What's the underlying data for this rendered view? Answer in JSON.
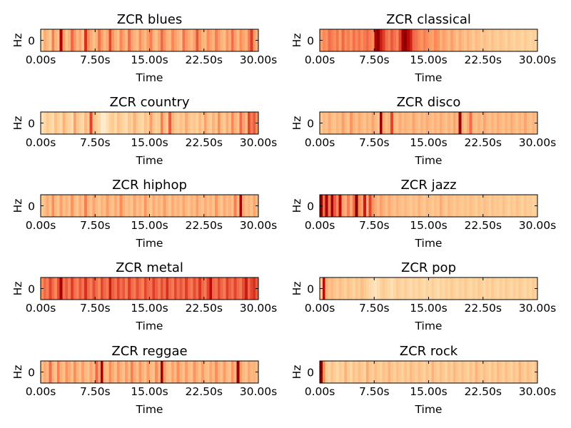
{
  "colormap": {
    "name": "OrRd",
    "stops": [
      "#fff7ec",
      "#fee8c8",
      "#fdd49e",
      "#fdbb84",
      "#fc8d59",
      "#ef6548",
      "#d7301f",
      "#b30000",
      "#7f0000"
    ]
  },
  "chart_data": [
    {
      "type": "heatmap",
      "title": "ZCR blues",
      "xlabel": "Time",
      "ylabel": "Hz",
      "xticks": [
        "0.00s",
        "7.50s",
        "15.00s",
        "22.50s",
        "30.00s"
      ],
      "yticks": [
        "0"
      ],
      "xlim": [
        0,
        30
      ],
      "values": [
        0.25,
        0.42,
        0.38,
        0.3,
        0.55,
        0.4,
        0.35,
        0.88,
        0.45,
        0.33,
        0.4,
        0.62,
        0.48,
        0.38,
        0.44,
        0.36,
        0.75,
        0.5,
        0.42,
        0.35,
        0.4,
        0.58,
        0.46,
        0.38,
        0.43,
        0.7,
        0.48,
        0.4,
        0.35,
        0.52,
        0.44,
        0.38,
        0.6,
        0.45,
        0.4,
        0.36,
        0.5,
        0.42,
        0.38,
        0.46,
        0.55,
        0.4,
        0.36,
        0.44,
        0.62,
        0.48,
        0.4,
        0.38,
        0.52,
        0.45,
        0.4,
        0.35,
        0.58,
        0.47,
        0.42,
        0.38,
        0.45,
        0.66,
        0.48,
        0.4,
        0.38,
        0.5,
        0.44,
        0.4,
        0.55,
        0.46,
        0.4,
        0.36,
        0.48,
        0.42,
        0.6,
        0.45,
        0.38,
        0.5,
        0.44,
        0.4,
        0.55,
        0.72,
        0.46,
        0.4
      ]
    },
    {
      "type": "heatmap",
      "title": "ZCR classical",
      "xlabel": "Time",
      "ylabel": "Hz",
      "xticks": [
        "0.00s",
        "7.50s",
        "15.00s",
        "22.50s",
        "30.00s"
      ],
      "yticks": [
        "0"
      ],
      "xlim": [
        0,
        30
      ],
      "values": [
        0.45,
        0.52,
        0.48,
        0.6,
        0.55,
        0.5,
        0.58,
        0.46,
        0.62,
        0.5,
        0.55,
        0.48,
        0.6,
        0.52,
        0.58,
        0.5,
        0.56,
        0.62,
        0.54,
        0.5,
        0.88,
        0.95,
        0.8,
        0.72,
        0.6,
        0.55,
        0.65,
        0.58,
        0.52,
        0.7,
        0.9,
        0.96,
        0.85,
        0.78,
        0.62,
        0.58,
        0.52,
        0.48,
        0.55,
        0.5,
        0.46,
        0.44,
        0.52,
        0.48,
        0.4,
        0.45,
        0.42,
        0.38,
        0.45,
        0.4,
        0.35,
        0.42,
        0.38,
        0.33,
        0.4,
        0.36,
        0.3,
        0.38,
        0.34,
        0.3,
        0.36,
        0.32,
        0.28,
        0.34,
        0.3,
        0.27,
        0.33,
        0.29,
        0.26,
        0.32,
        0.28,
        0.25,
        0.3,
        0.27,
        0.24,
        0.3,
        0.26,
        0.24,
        0.28,
        0.25
      ]
    },
    {
      "type": "heatmap",
      "title": "ZCR country",
      "xlabel": "Time",
      "ylabel": "Hz",
      "xticks": [
        "0.00s",
        "7.50s",
        "15.00s",
        "22.50s",
        "30.00s"
      ],
      "yticks": [
        "0"
      ],
      "xlim": [
        0,
        30
      ],
      "values": [
        0.18,
        0.22,
        0.3,
        0.25,
        0.2,
        0.35,
        0.28,
        0.22,
        0.4,
        0.3,
        0.25,
        0.2,
        0.45,
        0.32,
        0.26,
        0.22,
        0.38,
        0.3,
        0.7,
        0.35,
        0.28,
        0.22,
        0.1,
        0.12,
        0.18,
        0.25,
        0.3,
        0.22,
        0.35,
        0.28,
        0.24,
        0.2,
        0.32,
        0.26,
        0.4,
        0.3,
        0.25,
        0.22,
        0.35,
        0.28,
        0.45,
        0.32,
        0.26,
        0.3,
        0.55,
        0.38,
        0.3,
        0.65,
        0.4,
        0.32,
        0.28,
        0.35,
        0.3,
        0.42,
        0.34,
        0.28,
        0.32,
        0.26,
        0.38,
        0.3,
        0.45,
        0.34,
        0.28,
        0.4,
        0.32,
        0.5,
        0.36,
        0.3,
        0.42,
        0.34,
        0.52,
        0.4,
        0.35,
        0.6,
        0.45,
        0.38,
        0.7,
        0.55,
        0.65,
        0.5
      ]
    },
    {
      "type": "heatmap",
      "title": "ZCR disco",
      "xlabel": "Time",
      "ylabel": "Hz",
      "xticks": [
        "0.00s",
        "7.50s",
        "15.00s",
        "22.50s",
        "30.00s"
      ],
      "yticks": [
        "0"
      ],
      "xlim": [
        0,
        30
      ],
      "values": [
        0.3,
        0.38,
        0.34,
        0.42,
        0.36,
        0.32,
        0.4,
        0.35,
        0.45,
        0.38,
        0.33,
        0.48,
        0.4,
        0.35,
        0.42,
        0.38,
        0.34,
        0.4,
        0.36,
        0.44,
        0.38,
        0.34,
        0.95,
        0.42,
        0.36,
        0.4,
        0.7,
        0.38,
        0.34,
        0.42,
        0.36,
        0.4,
        0.38,
        0.35,
        0.44,
        0.38,
        0.34,
        0.4,
        0.36,
        0.42,
        0.38,
        0.35,
        0.4,
        0.36,
        0.42,
        0.38,
        0.34,
        0.4,
        0.36,
        0.44,
        0.38,
        0.92,
        0.4,
        0.36,
        0.42,
        0.6,
        0.38,
        0.35,
        0.4,
        0.36,
        0.44,
        0.38,
        0.34,
        0.4,
        0.36,
        0.42,
        0.38,
        0.35,
        0.4,
        0.36,
        0.42,
        0.38,
        0.34,
        0.4,
        0.36,
        0.44,
        0.38,
        0.34,
        0.4,
        0.36
      ]
    },
    {
      "type": "heatmap",
      "title": "ZCR hiphop",
      "xlabel": "Time",
      "ylabel": "Hz",
      "xticks": [
        "0.00s",
        "7.50s",
        "15.00s",
        "22.50s",
        "30.00s"
      ],
      "yticks": [
        "0"
      ],
      "xlim": [
        0,
        30
      ],
      "values": [
        0.3,
        0.36,
        0.42,
        0.34,
        0.5,
        0.38,
        0.32,
        0.45,
        0.36,
        0.4,
        0.34,
        0.48,
        0.38,
        0.32,
        0.42,
        0.36,
        0.55,
        0.4,
        0.34,
        0.44,
        0.38,
        0.32,
        0.4,
        0.36,
        0.46,
        0.38,
        0.34,
        0.42,
        0.36,
        0.5,
        0.4,
        0.34,
        0.38,
        0.32,
        0.44,
        0.36,
        0.4,
        0.34,
        0.48,
        0.38,
        0.32,
        0.42,
        0.36,
        0.4,
        0.34,
        0.46,
        0.38,
        0.32,
        0.42,
        0.36,
        0.4,
        0.34,
        0.44,
        0.38,
        0.32,
        0.4,
        0.36,
        0.45,
        0.38,
        0.34,
        0.42,
        0.36,
        0.4,
        0.34,
        0.48,
        0.38,
        0.32,
        0.42,
        0.36,
        0.4,
        0.34,
        0.55,
        0.38,
        0.9,
        0.42,
        0.36,
        0.4,
        0.34,
        0.44,
        0.38
      ]
    },
    {
      "type": "heatmap",
      "title": "ZCR jazz",
      "xlabel": "Time",
      "ylabel": "Hz",
      "xticks": [
        "0.00s",
        "7.50s",
        "15.00s",
        "22.50s",
        "30.00s"
      ],
      "yticks": [
        "0"
      ],
      "xlim": [
        0,
        30
      ],
      "values": [
        0.95,
        0.6,
        0.9,
        0.55,
        0.92,
        0.65,
        0.5,
        0.85,
        0.45,
        0.4,
        0.55,
        0.42,
        0.6,
        0.98,
        0.5,
        0.45,
        0.8,
        0.4,
        0.7,
        0.48,
        0.42,
        0.38,
        0.45,
        0.4,
        0.36,
        0.42,
        0.38,
        0.34,
        0.4,
        0.36,
        0.32,
        0.38,
        0.34,
        0.3,
        0.36,
        0.32,
        0.4,
        0.34,
        0.3,
        0.38,
        0.34,
        0.3,
        0.36,
        0.32,
        0.42,
        0.34,
        0.3,
        0.38,
        0.34,
        0.3,
        0.36,
        0.32,
        0.3,
        0.34,
        0.3,
        0.36,
        0.32,
        0.28,
        0.34,
        0.3,
        0.36,
        0.32,
        0.28,
        0.34,
        0.3,
        0.32,
        0.28,
        0.34,
        0.3,
        0.26,
        0.32,
        0.28,
        0.34,
        0.3,
        0.26,
        0.32,
        0.28,
        0.3,
        0.26,
        0.28
      ]
    },
    {
      "type": "heatmap",
      "title": "ZCR metal",
      "xlabel": "Time",
      "ylabel": "Hz",
      "xticks": [
        "0.00s",
        "7.50s",
        "15.00s",
        "22.50s",
        "30.00s"
      ],
      "yticks": [
        "0"
      ],
      "xlim": [
        0,
        30
      ],
      "values": [
        0.5,
        0.62,
        0.55,
        0.7,
        0.6,
        0.52,
        0.68,
        0.9,
        0.58,
        0.65,
        0.55,
        0.72,
        0.6,
        0.54,
        0.66,
        0.58,
        0.75,
        0.62,
        0.55,
        0.68,
        0.6,
        0.52,
        0.7,
        0.62,
        0.56,
        0.8,
        0.64,
        0.58,
        0.7,
        0.6,
        0.66,
        0.55,
        0.72,
        0.62,
        0.56,
        0.68,
        0.6,
        0.54,
        0.7,
        0.62,
        0.58,
        0.72,
        0.64,
        0.56,
        0.68,
        0.6,
        0.75,
        0.62,
        0.56,
        0.7,
        0.6,
        0.66,
        0.58,
        0.72,
        0.62,
        0.56,
        0.68,
        0.6,
        0.74,
        0.62,
        0.56,
        0.7,
        0.85,
        0.62,
        0.58,
        0.7,
        0.62,
        0.56,
        0.72,
        0.64,
        0.58,
        0.7,
        0.62,
        0.56,
        0.68,
        0.8,
        0.62,
        0.7,
        0.75,
        0.65
      ]
    },
    {
      "type": "heatmap",
      "title": "ZCR pop",
      "xlabel": "Time",
      "ylabel": "Hz",
      "xticks": [
        "0.00s",
        "7.50s",
        "15.00s",
        "22.50s",
        "30.00s"
      ],
      "yticks": [
        "0"
      ],
      "xlim": [
        0,
        30
      ],
      "values": [
        0.3,
        0.85,
        0.4,
        0.34,
        0.38,
        0.32,
        0.28,
        0.36,
        0.3,
        0.26,
        0.34,
        0.3,
        0.24,
        0.32,
        0.28,
        0.36,
        0.3,
        0.26,
        0.22,
        0.18,
        0.15,
        0.2,
        0.25,
        0.3,
        0.26,
        0.22,
        0.18,
        0.24,
        0.3,
        0.26,
        0.22,
        0.28,
        0.24,
        0.2,
        0.26,
        0.22,
        0.28,
        0.24,
        0.2,
        0.26,
        0.22,
        0.28,
        0.24,
        0.2,
        0.26,
        0.22,
        0.28,
        0.24,
        0.3,
        0.26,
        0.22,
        0.28,
        0.24,
        0.3,
        0.26,
        0.22,
        0.28,
        0.24,
        0.3,
        0.26,
        0.22,
        0.28,
        0.24,
        0.3,
        0.26,
        0.22,
        0.28,
        0.24,
        0.3,
        0.26,
        0.22,
        0.28,
        0.24,
        0.3,
        0.26,
        0.22,
        0.28,
        0.24,
        0.3,
        0.26
      ]
    },
    {
      "type": "heatmap",
      "title": "ZCR reggae",
      "xlabel": "Time",
      "ylabel": "Hz",
      "xticks": [
        "0.00s",
        "7.50s",
        "15.00s",
        "22.50s",
        "30.00s"
      ],
      "yticks": [
        "0"
      ],
      "xlim": [
        0,
        30
      ],
      "values": [
        0.35,
        0.42,
        0.38,
        0.6,
        0.4,
        0.34,
        0.55,
        0.4,
        0.36,
        0.48,
        0.42,
        0.36,
        0.5,
        0.4,
        0.34,
        0.46,
        0.38,
        0.34,
        0.44,
        0.38,
        0.62,
        0.44,
        0.9,
        0.4,
        0.36,
        0.5,
        0.42,
        0.36,
        0.48,
        0.4,
        0.34,
        0.46,
        0.38,
        0.55,
        0.42,
        0.36,
        0.48,
        0.4,
        0.34,
        0.46,
        0.38,
        0.34,
        0.5,
        0.4,
        0.92,
        0.46,
        0.38,
        0.34,
        0.44,
        0.38,
        0.5,
        0.4,
        0.36,
        0.46,
        0.38,
        0.34,
        0.48,
        0.4,
        0.36,
        0.46,
        0.38,
        0.34,
        0.44,
        0.38,
        0.5,
        0.4,
        0.36,
        0.46,
        0.38,
        0.34,
        0.48,
        0.4,
        0.95,
        0.46,
        0.38,
        0.34,
        0.44,
        0.38,
        0.4,
        0.36
      ]
    },
    {
      "type": "heatmap",
      "title": "ZCR rock",
      "xlabel": "Time",
      "ylabel": "Hz",
      "xticks": [
        "0.00s",
        "7.50s",
        "15.00s",
        "22.50s",
        "30.00s"
      ],
      "yticks": [
        "0"
      ],
      "xlim": [
        0,
        30
      ],
      "values": [
        0.95,
        0.5,
        0.3,
        0.25,
        0.34,
        0.28,
        0.22,
        0.3,
        0.26,
        0.4,
        0.3,
        0.24,
        0.34,
        0.28,
        0.36,
        0.3,
        0.26,
        0.42,
        0.32,
        0.28,
        0.36,
        0.3,
        0.26,
        0.34,
        0.3,
        0.4,
        0.32,
        0.28,
        0.36,
        0.3,
        0.26,
        0.34,
        0.28,
        0.38,
        0.32,
        0.28,
        0.36,
        0.3,
        0.26,
        0.34,
        0.28,
        0.4,
        0.32,
        0.28,
        0.36,
        0.3,
        0.26,
        0.34,
        0.28,
        0.38,
        0.32,
        0.28,
        0.36,
        0.3,
        0.26,
        0.34,
        0.28,
        0.4,
        0.32,
        0.28,
        0.36,
        0.3,
        0.26,
        0.34,
        0.28,
        0.38,
        0.32,
        0.28,
        0.36,
        0.3,
        0.26,
        0.34,
        0.28,
        0.4,
        0.32,
        0.28,
        0.36,
        0.3,
        0.26,
        0.34
      ]
    }
  ]
}
